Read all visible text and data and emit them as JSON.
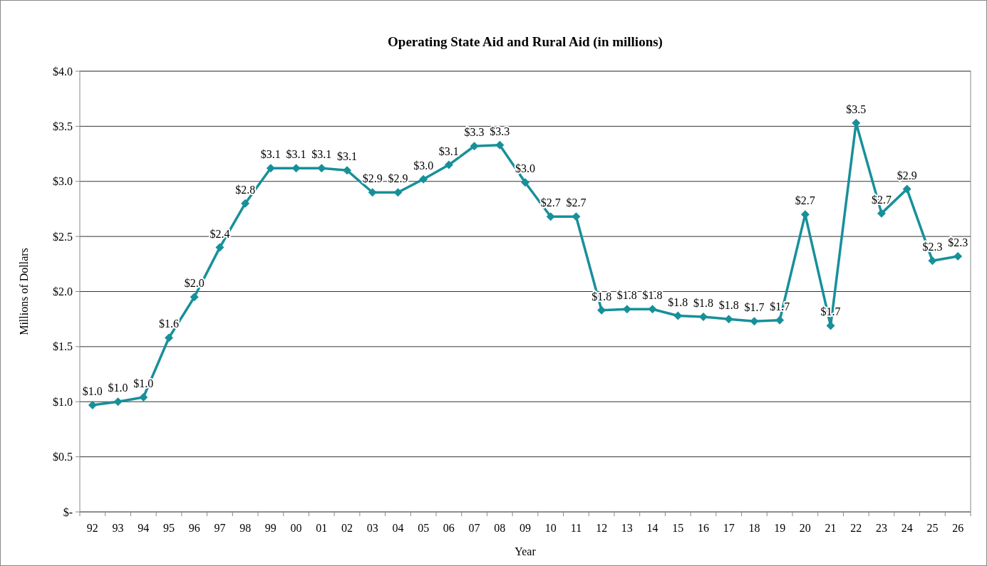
{
  "chart_data": {
    "type": "line",
    "title": "Operating State Aid  and Rural Aid (in millions)",
    "xlabel": "Year",
    "ylabel": "Millions of Dollars",
    "categories": [
      "92",
      "93",
      "94",
      "95",
      "96",
      "97",
      "98",
      "99",
      "00",
      "01",
      "02",
      "03",
      "04",
      "05",
      "06",
      "07",
      "08",
      "09",
      "10",
      "11",
      "12",
      "13",
      "14",
      "15",
      "16",
      "17",
      "18",
      "19",
      "20",
      "21",
      "22",
      "23",
      "24",
      "25",
      "26"
    ],
    "series": [
      {
        "color": "#17909a",
        "values": [
          0.97,
          1.0,
          1.04,
          1.58,
          1.95,
          2.4,
          2.8,
          3.12,
          3.12,
          3.12,
          3.1,
          2.9,
          2.9,
          3.02,
          3.15,
          3.32,
          3.33,
          2.99,
          2.68,
          2.68,
          1.83,
          1.84,
          1.84,
          1.78,
          1.77,
          1.75,
          1.73,
          1.74,
          2.7,
          1.69,
          3.53,
          2.71,
          2.93,
          2.28,
          2.32
        ],
        "value_labels": [
          "$1.0",
          "$1.0",
          "$1.0",
          "$1.6",
          "$2.0",
          "$2.4",
          "$2.8",
          "$3.1",
          "$3.1",
          "$3.1",
          "$3.1",
          "$2.9",
          "$2.9",
          "$3.0",
          "$3.1",
          "$3.3",
          "$3.3",
          "$3.0",
          "$2.7",
          "$2.7",
          "$1.8",
          "$1.8",
          "$1.8",
          "$1.8",
          "$1.8",
          "$1.8",
          "$1.7",
          "$1.7",
          "$2.7",
          "$1.7",
          "$3.5",
          "$2.7",
          "$2.9",
          "$2.3",
          "$2.3"
        ]
      }
    ],
    "ylim": [
      0,
      4
    ],
    "yticks": [
      {
        "value": 0,
        "label": "$-"
      },
      {
        "value": 0.5,
        "label": "$0.5"
      },
      {
        "value": 1,
        "label": "$1.0"
      },
      {
        "value": 1.5,
        "label": "$1.5"
      },
      {
        "value": 2,
        "label": "$2.0"
      },
      {
        "value": 2.5,
        "label": "$2.5"
      },
      {
        "value": 3,
        "label": "$3.0"
      },
      {
        "value": 3.5,
        "label": "$3.5"
      },
      {
        "value": 4,
        "label": "$4.0"
      }
    ],
    "grid": "y",
    "marker": "diamond",
    "line_style": "solid"
  }
}
